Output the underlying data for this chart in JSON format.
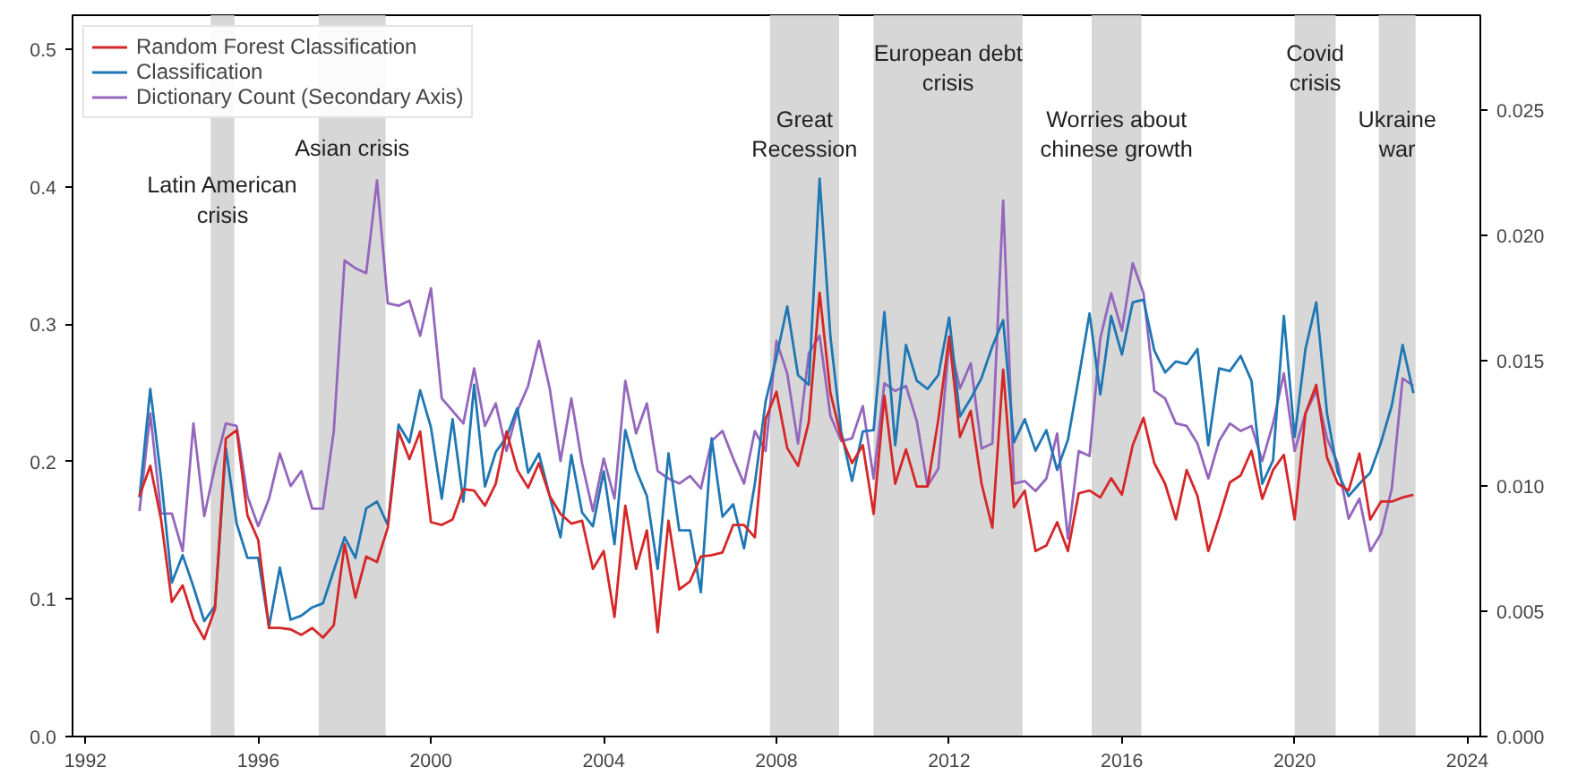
{
  "chart_data": {
    "type": "line",
    "x": [
      1993.25,
      1993.5,
      1993.75,
      1994,
      1994.25,
      1994.5,
      1994.75,
      1995,
      1995.25,
      1995.5,
      1995.75,
      1996,
      1996.25,
      1996.5,
      1996.75,
      1997,
      1997.25,
      1997.5,
      1997.75,
      1998,
      1998.25,
      1998.5,
      1998.75,
      1999,
      1999.25,
      1999.5,
      1999.75,
      2000,
      2000.25,
      2000.5,
      2000.75,
      2001,
      2001.25,
      2001.5,
      2001.75,
      2002,
      2002.25,
      2002.5,
      2002.75,
      2003,
      2003.25,
      2003.5,
      2003.75,
      2004,
      2004.25,
      2004.5,
      2004.75,
      2005,
      2005.25,
      2005.5,
      2005.75,
      2006,
      2006.25,
      2006.5,
      2006.75,
      2007,
      2007.25,
      2007.5,
      2007.75,
      2008,
      2008.25,
      2008.5,
      2008.75,
      2009,
      2009.25,
      2009.5,
      2009.75,
      2010,
      2010.25,
      2010.5,
      2010.75,
      2011,
      2011.25,
      2011.5,
      2011.75,
      2012,
      2012.25,
      2012.5,
      2012.75,
      2013,
      2013.25,
      2013.5,
      2013.75,
      2014,
      2014.25,
      2014.5,
      2014.75,
      2015,
      2015.25,
      2015.5,
      2015.75,
      2016,
      2016.25,
      2016.5,
      2016.75,
      2017,
      2017.25,
      2017.5,
      2017.75,
      2018,
      2018.25,
      2018.5,
      2018.75,
      2019,
      2019.25,
      2019.5,
      2019.75,
      2020,
      2020.25,
      2020.5,
      2020.75,
      2021,
      2021.25,
      2021.5,
      2021.75,
      2022,
      2022.25,
      2022.5,
      2022.75
    ],
    "series": [
      {
        "name": "Random Forest Classification",
        "color": "#d62728",
        "values": [
          0.175,
          0.197,
          0.158,
          0.098,
          0.11,
          0.085,
          0.071,
          0.093,
          0.217,
          0.223,
          0.161,
          0.143,
          0.079,
          0.079,
          0.078,
          0.074,
          0.079,
          0.072,
          0.081,
          0.14,
          0.101,
          0.131,
          0.127,
          0.152,
          0.222,
          0.202,
          0.222,
          0.156,
          0.154,
          0.158,
          0.18,
          0.179,
          0.168,
          0.184,
          0.222,
          0.194,
          0.181,
          0.199,
          0.175,
          0.162,
          0.155,
          0.157,
          0.122,
          0.135,
          0.087,
          0.168,
          0.122,
          0.15,
          0.076,
          0.157,
          0.107,
          0.113,
          0.131,
          0.132,
          0.134,
          0.154,
          0.154,
          0.145,
          0.231,
          0.251,
          0.21,
          0.197,
          0.229,
          0.323,
          0.25,
          0.218,
          0.199,
          0.212,
          0.162,
          0.248,
          0.184,
          0.209,
          0.182,
          0.182,
          0.231,
          0.291,
          0.218,
          0.237,
          0.184,
          0.152,
          0.267,
          0.167,
          0.179,
          0.135,
          0.139,
          0.156,
          0.135,
          0.177,
          0.179,
          0.174,
          0.188,
          0.176,
          0.212,
          0.232,
          0.199,
          0.184,
          0.158,
          0.194,
          0.175,
          0.135,
          0.159,
          0.185,
          0.19,
          0.208,
          0.173,
          0.194,
          0.205,
          0.158,
          0.235,
          0.256,
          0.203,
          0.184,
          0.179,
          0.206,
          0.158,
          0.171,
          0.171,
          0.174,
          0.176
        ]
      },
      {
        "name": "Classification",
        "color": "#1f77b4",
        "values": [
          0.174,
          0.253,
          0.188,
          0.112,
          0.132,
          0.109,
          0.084,
          0.095,
          0.21,
          0.155,
          0.13,
          0.13,
          0.08,
          0.123,
          0.085,
          0.088,
          0.094,
          0.097,
          0.121,
          0.145,
          0.13,
          0.166,
          0.171,
          0.154,
          0.227,
          0.214,
          0.252,
          0.225,
          0.173,
          0.231,
          0.171,
          0.256,
          0.182,
          0.207,
          0.218,
          0.239,
          0.192,
          0.206,
          0.175,
          0.145,
          0.205,
          0.163,
          0.153,
          0.193,
          0.14,
          0.223,
          0.194,
          0.175,
          0.122,
          0.206,
          0.15,
          0.15,
          0.105,
          0.217,
          0.16,
          0.169,
          0.137,
          0.184,
          0.244,
          0.276,
          0.313,
          0.263,
          0.256,
          0.406,
          0.291,
          0.222,
          0.186,
          0.222,
          0.223,
          0.309,
          0.212,
          0.285,
          0.259,
          0.253,
          0.263,
          0.305,
          0.233,
          0.246,
          0.261,
          0.284,
          0.303,
          0.214,
          0.231,
          0.208,
          0.223,
          0.194,
          0.216,
          0.261,
          0.308,
          0.249,
          0.306,
          0.278,
          0.316,
          0.318,
          0.281,
          0.265,
          0.273,
          0.271,
          0.282,
          0.212,
          0.268,
          0.266,
          0.277,
          0.259,
          0.184,
          0.201,
          0.306,
          0.218,
          0.282,
          0.316,
          0.235,
          0.192,
          0.175,
          0.184,
          0.192,
          0.214,
          0.241,
          0.285,
          0.25
        ]
      },
      {
        "name": "Dictionary Count (Secondary Axis)",
        "color": "#9467bd",
        "axis": "y2",
        "values": [
          0.009,
          0.0129,
          0.0089,
          0.0089,
          0.0074,
          0.0125,
          0.0088,
          0.0108,
          0.0125,
          0.0124,
          0.0096,
          0.0084,
          0.0095,
          0.0113,
          0.01,
          0.0106,
          0.0091,
          0.0091,
          0.0122,
          0.019,
          0.0187,
          0.0185,
          0.0222,
          0.0173,
          0.0172,
          0.0174,
          0.016,
          0.0179,
          0.0135,
          0.013,
          0.0125,
          0.0147,
          0.0124,
          0.0133,
          0.0114,
          0.013,
          0.014,
          0.0158,
          0.0139,
          0.011,
          0.0135,
          0.0109,
          0.009,
          0.0111,
          0.0095,
          0.0142,
          0.0121,
          0.0133,
          0.0106,
          0.0103,
          0.0101,
          0.0104,
          0.0099,
          0.0118,
          0.0122,
          0.0111,
          0.0101,
          0.0122,
          0.0114,
          0.0158,
          0.0145,
          0.0117,
          0.0153,
          0.016,
          0.0128,
          0.0118,
          0.0119,
          0.0132,
          0.0103,
          0.0141,
          0.0138,
          0.014,
          0.0126,
          0.01,
          0.0107,
          0.0158,
          0.0139,
          0.0149,
          0.0115,
          0.0117,
          0.0214,
          0.0101,
          0.0102,
          0.0098,
          0.0103,
          0.0121,
          0.0079,
          0.0114,
          0.0112,
          0.0159,
          0.0177,
          0.0162,
          0.0189,
          0.0177,
          0.0138,
          0.0135,
          0.0125,
          0.0124,
          0.0117,
          0.0103,
          0.0118,
          0.0125,
          0.0122,
          0.0124,
          0.011,
          0.0125,
          0.0145,
          0.0114,
          0.0129,
          0.0138,
          0.0119,
          0.0109,
          0.0087,
          0.0095,
          0.0074,
          0.0081,
          0.0099,
          0.0143,
          0.014
        ]
      }
    ],
    "xlim": [
      1991.7,
      2024.3
    ],
    "xticks": [
      1992,
      1996,
      2000,
      2004,
      2008,
      2012,
      2016,
      2020,
      2024
    ],
    "ylim": [
      0,
      0.525
    ],
    "yticks": [
      {
        "value": 0,
        "label": "0.0"
      },
      {
        "value": 0.1,
        "label": "0.1"
      },
      {
        "value": 0.2,
        "label": "0.2"
      },
      {
        "value": 0.3,
        "label": "0.3"
      },
      {
        "value": 0.4,
        "label": "0.4"
      },
      {
        "value": 0.5,
        "label": "0.5"
      }
    ],
    "y2lim": [
      0,
      0.0288
    ],
    "y2ticks": [
      {
        "value": 0,
        "label": "0.000"
      },
      {
        "value": 0.005,
        "label": "0.005"
      },
      {
        "value": 0.01,
        "label": "0.010"
      },
      {
        "value": 0.015,
        "label": "0.015"
      },
      {
        "value": 0.02,
        "label": "0.020"
      },
      {
        "value": 0.025,
        "label": "0.025"
      }
    ],
    "bands": [
      {
        "axis": "x",
        "from": 1994.9,
        "to": 1995.45,
        "label": "Latin American\ncrisis",
        "color": "#d3d3d3"
      },
      {
        "axis": "x",
        "from": 1997.4,
        "to": 1998.95,
        "label": "Asian crisis",
        "color": "#d3d3d3"
      },
      {
        "axis": "x",
        "from": 2007.85,
        "to": 2009.45,
        "label": "Great\nRecession",
        "color": "#d3d3d3"
      },
      {
        "axis": "x",
        "from": 2010.25,
        "to": 2013.7,
        "label": "European debt\ncrisis",
        "color": "#d3d3d3"
      },
      {
        "axis": "x",
        "from": 2015.3,
        "to": 2016.45,
        "label": "Worries about\nchinese growth",
        "color": "#d3d3d3"
      },
      {
        "axis": "x",
        "from": 2020.0,
        "to": 2020.95,
        "label": "Covid\ncrisis",
        "color": "#d3d3d3"
      },
      {
        "axis": "x",
        "from": 2021.95,
        "to": 2022.8,
        "label": "Ukraine\nwar",
        "color": "#d3d3d3"
      }
    ],
    "grid": false,
    "legend": "top left"
  }
}
